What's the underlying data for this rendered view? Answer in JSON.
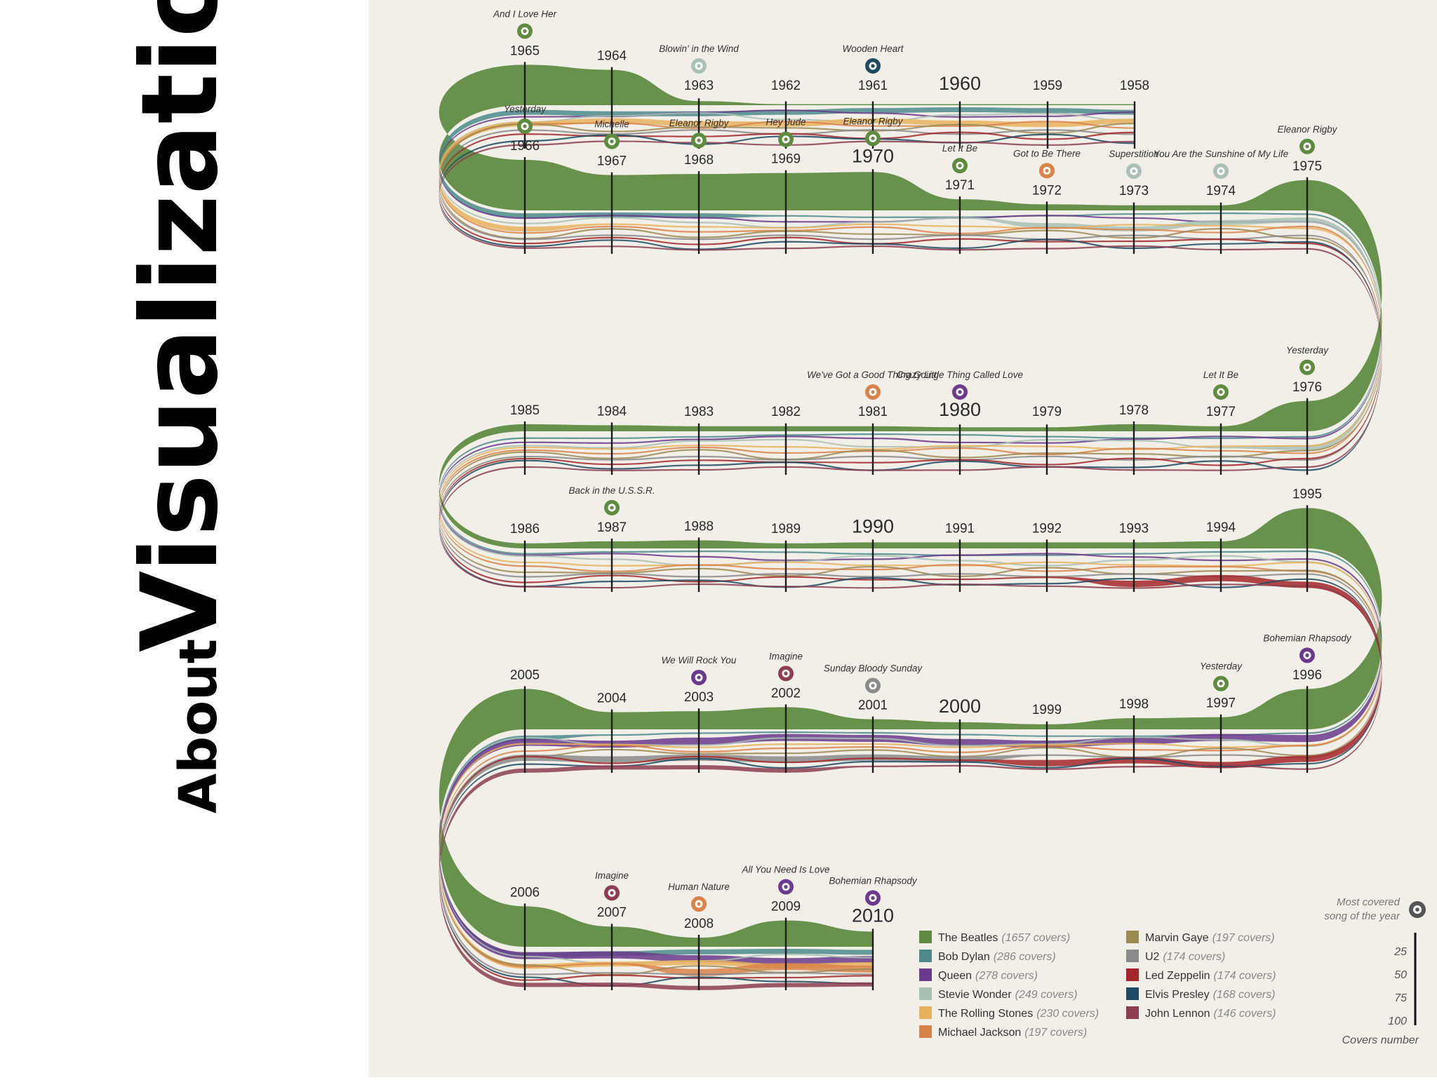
{
  "slide": {
    "title_small": "About",
    "title_big": "Visualization"
  },
  "chart_data": {
    "type": "area",
    "legend_note": "Most covered song of the year",
    "scale_title": "Covers number",
    "scale_ticks": [
      "25",
      "50",
      "75",
      "100"
    ],
    "series": [
      {
        "name": "The Beatles",
        "count": "(1657 covers)",
        "color": "#5e8b3f"
      },
      {
        "name": "Bob Dylan",
        "count": "(286 covers)",
        "color": "#4e8a8c"
      },
      {
        "name": "Queen",
        "count": "(278 covers)",
        "color": "#6b3a8c"
      },
      {
        "name": "Stevie Wonder",
        "count": "(249 covers)",
        "color": "#a9c0b4"
      },
      {
        "name": "The Rolling Stones",
        "count": "(230 covers)",
        "color": "#e7b15e"
      },
      {
        "name": "Michael Jackson",
        "count": "(197 covers)",
        "color": "#d9824a"
      },
      {
        "name": "Marvin Gaye",
        "count": "(197 covers)",
        "color": "#9c8a55"
      },
      {
        "name": "U2",
        "count": "(174 covers)",
        "color": "#8a8a8a"
      },
      {
        "name": "Led Zeppelin",
        "count": "(174 covers)",
        "color": "#a3272a"
      },
      {
        "name": "Elvis Presley",
        "count": "(168 covers)",
        "color": "#1f4a63"
      },
      {
        "name": "John Lennon",
        "count": "(146 covers)",
        "color": "#8c3d4f"
      }
    ],
    "years": [
      {
        "year": "1958",
        "song": ""
      },
      {
        "year": "1959",
        "song": ""
      },
      {
        "year": "1960",
        "song": ""
      },
      {
        "year": "1961",
        "song": "Wooden Heart",
        "artist": "Elvis Presley"
      },
      {
        "year": "1962",
        "song": ""
      },
      {
        "year": "1963",
        "song": "Blowin' in the Wind",
        "artist": "Stevie Wonder"
      },
      {
        "year": "1964",
        "song": ""
      },
      {
        "year": "1965",
        "song": "And I Love Her",
        "artist": "The Beatles"
      },
      {
        "year": "1966",
        "song": "Yesterday",
        "artist": "The Beatles"
      },
      {
        "year": "1967",
        "song": "Michelle",
        "artist": "The Beatles"
      },
      {
        "year": "1968",
        "song": "Eleanor Rigby",
        "artist": "The Beatles"
      },
      {
        "year": "1969",
        "song": "Hey Jude",
        "artist": "The Beatles"
      },
      {
        "year": "1970",
        "song": "Eleanor Rigby",
        "artist": "The Beatles"
      },
      {
        "year": "1971",
        "song": "Let It Be",
        "artist": "The Beatles"
      },
      {
        "year": "1972",
        "song": "Got to Be There",
        "artist": "Michael Jackson"
      },
      {
        "year": "1973",
        "song": "Superstition",
        "artist": "Stevie Wonder"
      },
      {
        "year": "1974",
        "song": "You Are the Sunshine of My Life",
        "artist": "Stevie Wonder"
      },
      {
        "year": "1975",
        "song": "Eleanor Rigby",
        "artist": "The Beatles"
      },
      {
        "year": "1976",
        "song": "Yesterday",
        "artist": "The Beatles"
      },
      {
        "year": "1977",
        "song": "Let It Be",
        "artist": "The Beatles"
      },
      {
        "year": "1978",
        "song": ""
      },
      {
        "year": "1979",
        "song": ""
      },
      {
        "year": "1980",
        "song": "Crazy Little Thing Called Love",
        "artist": "Queen"
      },
      {
        "year": "1981",
        "song": "We've Got a Good Thing Going",
        "artist": "Michael Jackson"
      },
      {
        "year": "1982",
        "song": ""
      },
      {
        "year": "1983",
        "song": ""
      },
      {
        "year": "1984",
        "song": ""
      },
      {
        "year": "1985",
        "song": ""
      },
      {
        "year": "1986",
        "song": ""
      },
      {
        "year": "1987",
        "song": "Back in the U.S.S.R.",
        "artist": "The Beatles"
      },
      {
        "year": "1988",
        "song": ""
      },
      {
        "year": "1989",
        "song": ""
      },
      {
        "year": "1990",
        "song": ""
      },
      {
        "year": "1991",
        "song": ""
      },
      {
        "year": "1992",
        "song": ""
      },
      {
        "year": "1993",
        "song": ""
      },
      {
        "year": "1994",
        "song": ""
      },
      {
        "year": "1995",
        "song": ""
      },
      {
        "year": "1996",
        "song": "Bohemian Rhapsody",
        "artist": "Queen"
      },
      {
        "year": "1997",
        "song": "Yesterday",
        "artist": "The Beatles"
      },
      {
        "year": "1998",
        "song": ""
      },
      {
        "year": "1999",
        "song": ""
      },
      {
        "year": "2000",
        "song": ""
      },
      {
        "year": "2001",
        "song": "Sunday Bloody Sunday",
        "artist": "U2"
      },
      {
        "year": "2002",
        "song": "Imagine",
        "artist": "John Lennon"
      },
      {
        "year": "2003",
        "song": "We Will Rock You",
        "artist": "Queen"
      },
      {
        "year": "2004",
        "song": ""
      },
      {
        "year": "2005",
        "song": ""
      },
      {
        "year": "2006",
        "song": ""
      },
      {
        "year": "2007",
        "song": "Imagine",
        "artist": "John Lennon"
      },
      {
        "year": "2008",
        "song": "Human Nature",
        "artist": "Michael Jackson"
      },
      {
        "year": "2009",
        "song": "All You Need Is Love",
        "artist": "Queen"
      },
      {
        "year": "2010",
        "song": "Bohemian Rhapsody",
        "artist": "Queen"
      }
    ]
  }
}
